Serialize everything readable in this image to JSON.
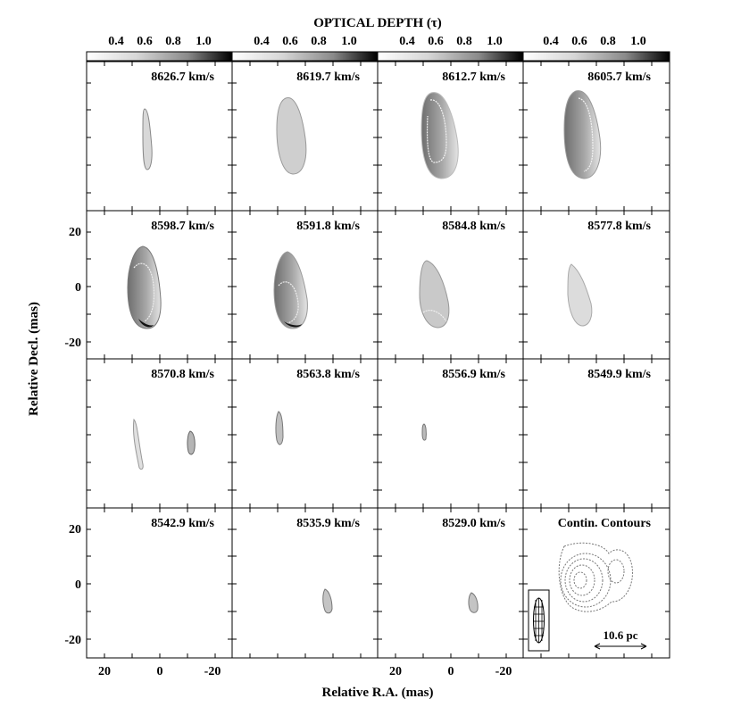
{
  "figure": {
    "colorbar": {
      "title": "OPTICAL DEPTH (τ)",
      "ticks": [
        "0.4",
        "0.6",
        "0.8",
        "1.0"
      ],
      "range": [
        0.25,
        1.1
      ]
    },
    "ylabel": "Relative Decl. (mas)",
    "xlabel": "Relative R.A. (mas)",
    "xticks": [
      "20",
      "0",
      "-20"
    ],
    "yticks": [
      "20",
      "0",
      "-20"
    ],
    "scale_bar_label": "10.6 pc",
    "panels": [
      {
        "label": "8626.7 km/s"
      },
      {
        "label": "8619.7 km/s"
      },
      {
        "label": "8612.7 km/s"
      },
      {
        "label": "8605.7 km/s"
      },
      {
        "label": "8598.7 km/s"
      },
      {
        "label": "8591.8 km/s"
      },
      {
        "label": "8584.8 km/s"
      },
      {
        "label": "8577.8 km/s"
      },
      {
        "label": "8570.8 km/s"
      },
      {
        "label": "8563.8 km/s"
      },
      {
        "label": "8556.9 km/s"
      },
      {
        "label": "8549.9 km/s"
      },
      {
        "label": "8542.9 km/s"
      },
      {
        "label": "8535.9 km/s"
      },
      {
        "label": "8529.0 km/s"
      },
      {
        "label": "Contin. Contours"
      }
    ]
  }
}
